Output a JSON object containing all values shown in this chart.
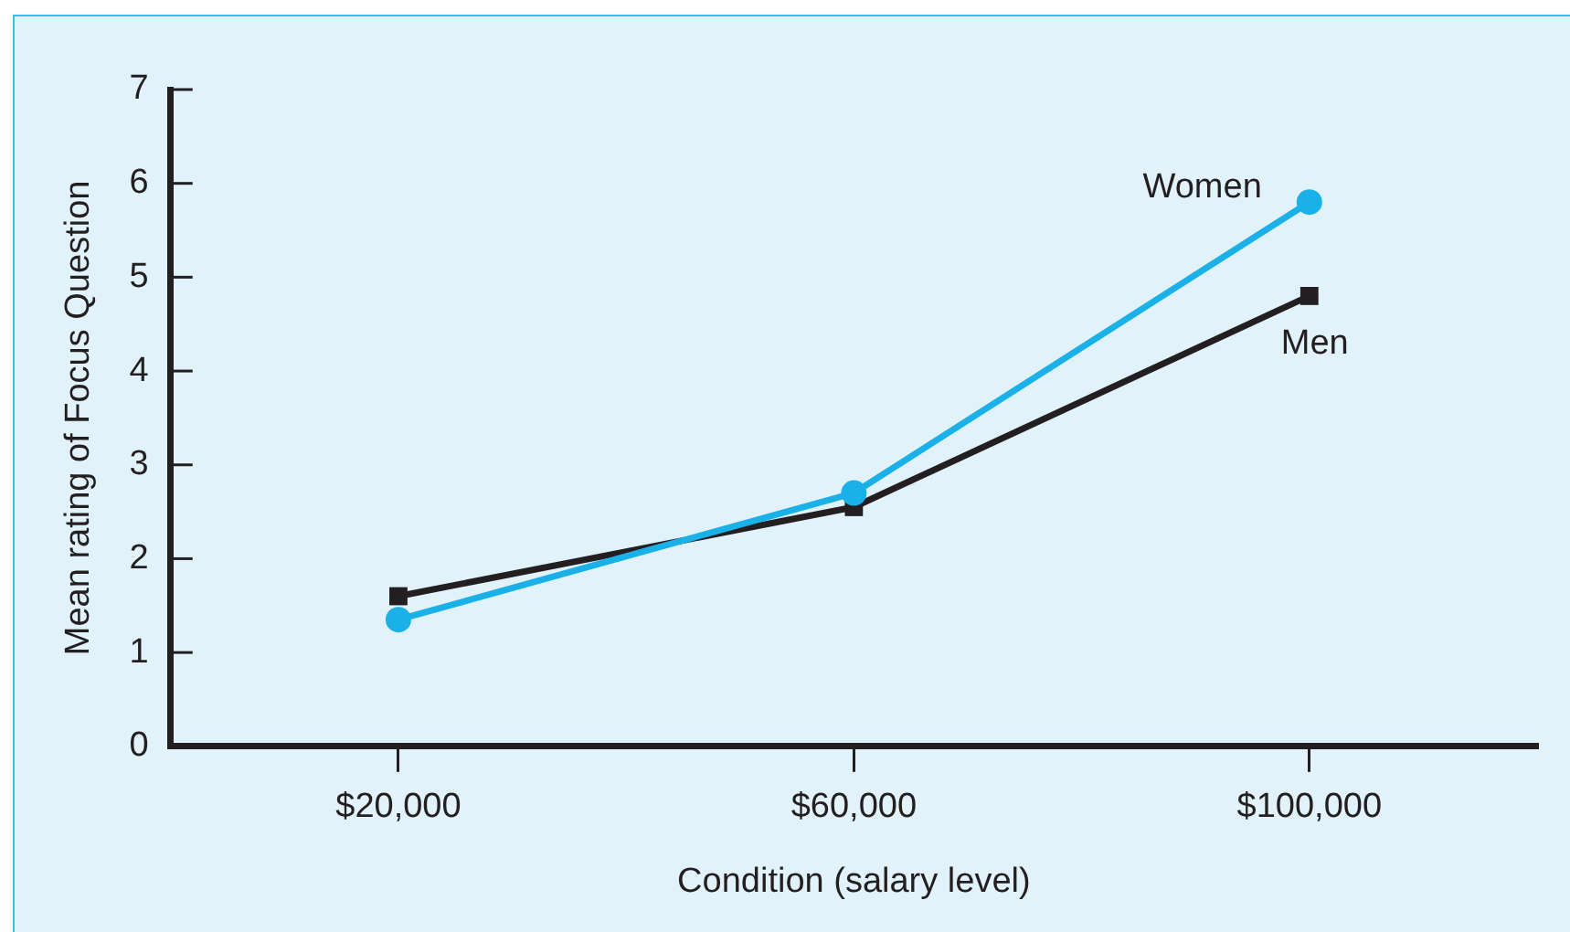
{
  "chart_data": {
    "type": "line",
    "xlabel": "Condition (salary level)",
    "ylabel": "Mean rating of Focus Question",
    "categories": [
      "$20,000",
      "$60,000",
      "$100,000"
    ],
    "series": [
      {
        "name": "Women",
        "color": "#1ab0e8",
        "values": [
          1.35,
          2.7,
          5.8
        ],
        "marker": "circle"
      },
      {
        "name": "Men",
        "color": "#231f20",
        "values": [
          1.6,
          2.55,
          4.8
        ],
        "marker": "square"
      }
    ],
    "ylim": [
      0,
      7
    ],
    "yticks": [
      0,
      1,
      2,
      3,
      4,
      5,
      6,
      7
    ],
    "grid": false,
    "legend": false
  }
}
